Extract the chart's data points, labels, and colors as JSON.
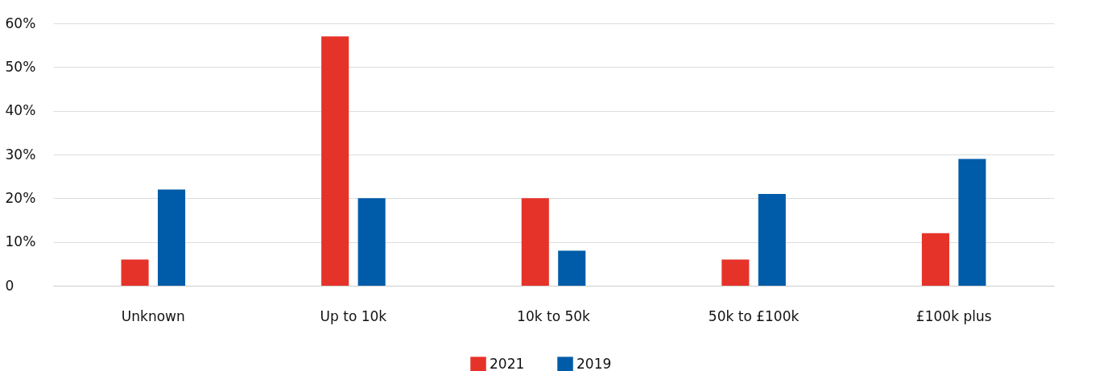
{
  "chart_data": {
    "type": "bar",
    "categories": [
      "Unknown",
      "Up to 10k",
      "10k to 50k",
      "50k to £100k",
      "£100k plus"
    ],
    "series": [
      {
        "name": "2021",
        "color": "#e63329",
        "values": [
          6,
          57,
          20,
          6,
          12
        ]
      },
      {
        "name": "2019",
        "color": "#005ca9",
        "values": [
          22,
          20,
          8,
          21,
          29
        ]
      }
    ],
    "ylim": [
      0,
      60
    ],
    "yticks": [
      0,
      {
        "value": 10,
        "label": "10%"
      },
      {
        "value": 20,
        "label": "20%"
      },
      {
        "value": 30,
        "label": "30%"
      },
      {
        "value": 40,
        "label": "40%"
      },
      {
        "value": 50,
        "label": "50%"
      },
      {
        "value": 60,
        "label": "60%"
      }
    ],
    "grid": "y",
    "legend": "bottom"
  }
}
